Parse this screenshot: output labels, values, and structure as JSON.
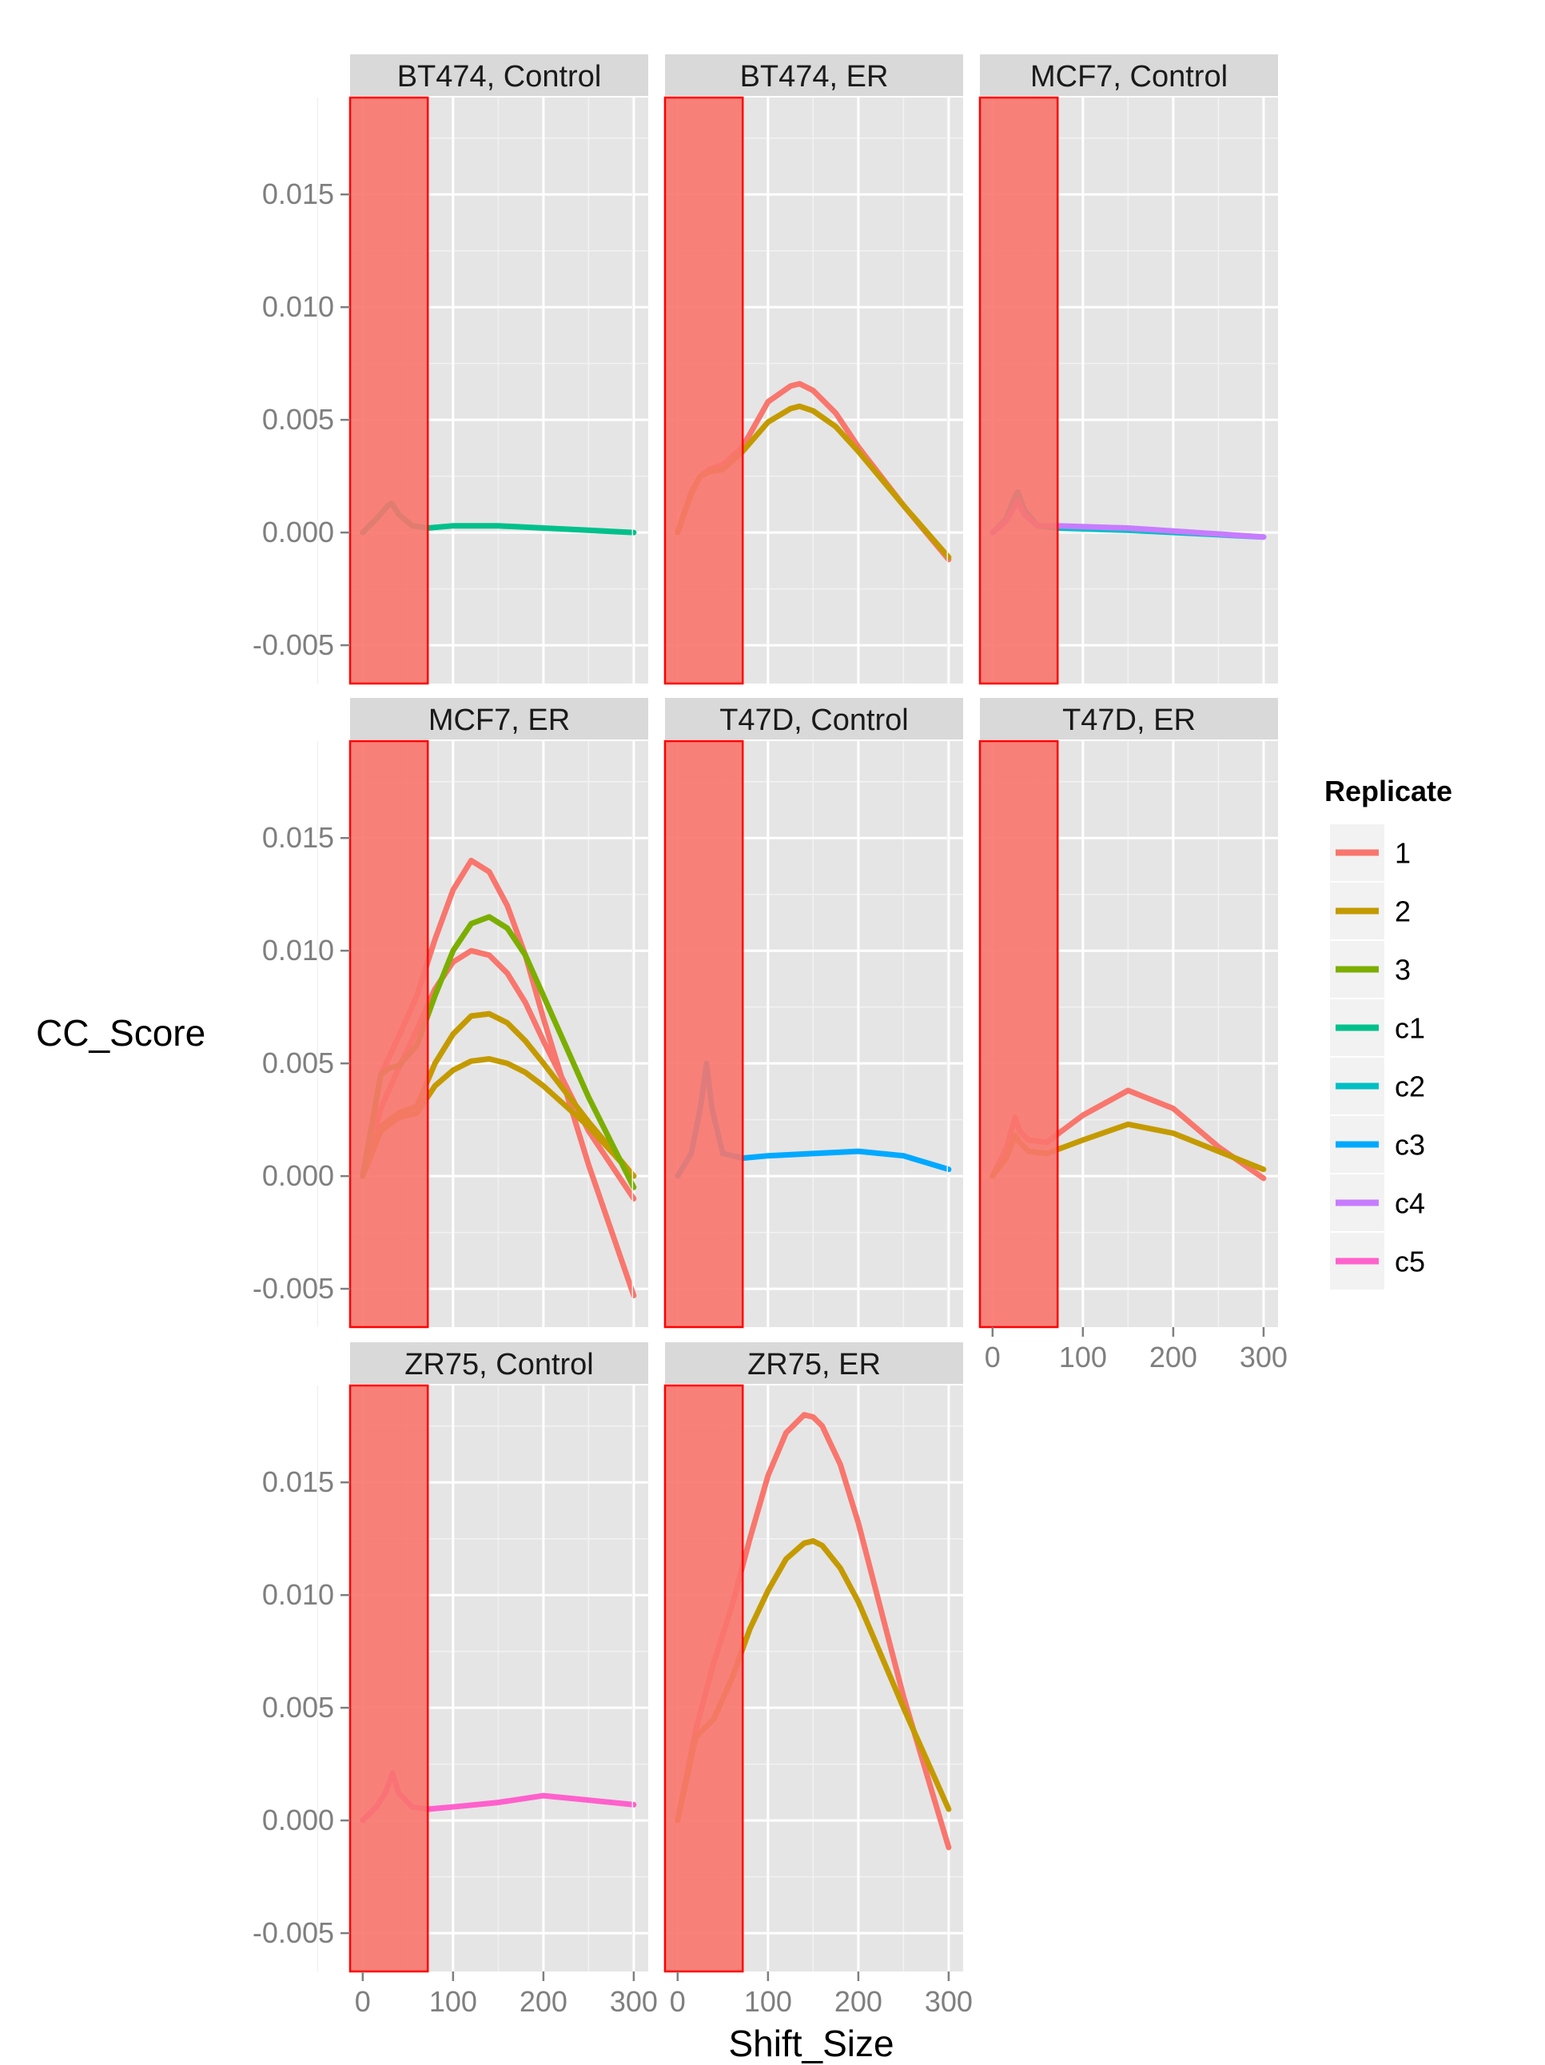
{
  "chart_data": {
    "type": "line",
    "xlabel": "Shift_Size",
    "ylabel": "CC_Score",
    "xlim": [
      -14,
      316
    ],
    "ylim": [
      -0.0067,
      0.0193
    ],
    "x_ticks": [
      0,
      100,
      200,
      300
    ],
    "y_ticks": [
      -0.005,
      0,
      0.005,
      0.01,
      0.015
    ],
    "y_tick_labels": [
      "-0.005",
      "0.000",
      "0.005",
      "0.010",
      "0.015"
    ],
    "grid": true,
    "highlight_region": {
      "x_from": -14,
      "x_to": 72,
      "color": "#f8766d"
    },
    "legend": {
      "title": "Replicate",
      "position": "right",
      "entries": [
        {
          "label": "1",
          "color": "#f8766d"
        },
        {
          "label": "2",
          "color": "#c49a00"
        },
        {
          "label": "3",
          "color": "#7cae00"
        },
        {
          "label": "c1",
          "color": "#00c08b"
        },
        {
          "label": "c2",
          "color": "#00bfc4"
        },
        {
          "label": "c3",
          "color": "#00a9ff"
        },
        {
          "label": "c4",
          "color": "#c77cff"
        },
        {
          "label": "c5",
          "color": "#ff61cc"
        }
      ]
    },
    "panels": [
      {
        "title": "BT474, Control",
        "series": [
          {
            "replicate": "c1",
            "color": "#00c08b",
            "x": [
              0,
              15,
              28,
              32,
              40,
              55,
              72,
              100,
              150,
              200,
              250,
              300
            ],
            "y": [
              0,
              0.0006,
              0.0012,
              0.0013,
              0.0008,
              0.0003,
              0.0002,
              0.0003,
              0.0003,
              0.0002,
              0.0001,
              0.0
            ]
          }
        ]
      },
      {
        "title": "BT474, ER",
        "series": [
          {
            "replicate": "1",
            "color": "#f8766d",
            "x": [
              0,
              15,
              25,
              35,
              50,
              72,
              100,
              125,
              135,
              150,
              175,
              200,
              250,
              300
            ],
            "y": [
              0,
              0.0018,
              0.0025,
              0.0028,
              0.003,
              0.0038,
              0.0058,
              0.0065,
              0.0066,
              0.0063,
              0.0053,
              0.0038,
              0.0012,
              -0.0012
            ]
          },
          {
            "replicate": "2",
            "color": "#c49a00",
            "x": [
              0,
              15,
              25,
              35,
              50,
              72,
              100,
              125,
              135,
              150,
              175,
              200,
              250,
              300
            ],
            "y": [
              0,
              0.0017,
              0.0025,
              0.0027,
              0.0028,
              0.0036,
              0.0049,
              0.0055,
              0.0056,
              0.0054,
              0.0047,
              0.0036,
              0.0012,
              -0.0011
            ]
          }
        ]
      },
      {
        "title": "MCF7, Control",
        "series": [
          {
            "replicate": "c2",
            "color": "#00bfc4",
            "x": [
              0,
              15,
              25,
              28,
              35,
              50,
              72,
              150,
              300
            ],
            "y": [
              0,
              0.0006,
              0.0016,
              0.0018,
              0.001,
              0.0003,
              0.0002,
              0.0001,
              -0.0002
            ]
          },
          {
            "replicate": "c4",
            "color": "#c77cff",
            "x": [
              0,
              15,
              25,
              28,
              35,
              50,
              72,
              150,
              300
            ],
            "y": [
              0,
              0.0005,
              0.0012,
              0.0014,
              0.0008,
              0.0003,
              0.0003,
              0.0002,
              -0.0002
            ]
          }
        ]
      },
      {
        "title": "MCF7, ER",
        "series": [
          {
            "replicate": "1",
            "color": "#f8766d",
            "x": [
              0,
              20,
              40,
              60,
              80,
              100,
              120,
              140,
              160,
              180,
              200,
              250,
              300
            ],
            "y": [
              0,
              0.0045,
              0.0062,
              0.008,
              0.0105,
              0.0127,
              0.014,
              0.0135,
              0.012,
              0.0098,
              0.007,
              0.0005,
              -0.0053
            ]
          },
          {
            "replicate": "1",
            "color": "#f8766d",
            "x": [
              0,
              20,
              40,
              60,
              80,
              100,
              120,
              140,
              160,
              180,
              200,
              250,
              300
            ],
            "y": [
              0,
              0.003,
              0.0048,
              0.0065,
              0.0083,
              0.0095,
              0.01,
              0.0098,
              0.009,
              0.0077,
              0.006,
              0.002,
              -0.001
            ]
          },
          {
            "replicate": "2",
            "color": "#c49a00",
            "x": [
              0,
              20,
              40,
              60,
              80,
              100,
              120,
              140,
              160,
              180,
              200,
              250,
              300
            ],
            "y": [
              0,
              0.0022,
              0.0028,
              0.0031,
              0.005,
              0.0063,
              0.0071,
              0.0072,
              0.0068,
              0.006,
              0.005,
              0.0024,
              0.0
            ]
          },
          {
            "replicate": "2",
            "color": "#c49a00",
            "x": [
              0,
              20,
              40,
              60,
              80,
              100,
              120,
              140,
              160,
              180,
              200,
              250,
              300
            ],
            "y": [
              0,
              0.002,
              0.0026,
              0.0028,
              0.004,
              0.0047,
              0.0051,
              0.0052,
              0.005,
              0.0046,
              0.004,
              0.0022,
              0.0
            ]
          },
          {
            "replicate": "3",
            "color": "#7cae00",
            "x": [
              0,
              20,
              30,
              40,
              60,
              80,
              100,
              120,
              140,
              160,
              180,
              200,
              250,
              300
            ],
            "y": [
              0,
              0.0045,
              0.0048,
              0.0049,
              0.0058,
              0.008,
              0.01,
              0.0112,
              0.0115,
              0.011,
              0.0098,
              0.008,
              0.0035,
              -0.0005
            ]
          }
        ]
      },
      {
        "title": "T47D, Control",
        "series": [
          {
            "replicate": "c3",
            "color": "#00a9ff",
            "x": [
              0,
              15,
              25,
              32,
              38,
              50,
              72,
              100,
              150,
              200,
              250,
              300
            ],
            "y": [
              0,
              0.001,
              0.003,
              0.005,
              0.003,
              0.001,
              0.0008,
              0.0009,
              0.001,
              0.0011,
              0.0009,
              0.0003
            ]
          }
        ]
      },
      {
        "title": "T47D, ER",
        "series": [
          {
            "replicate": "1",
            "color": "#f8766d",
            "x": [
              0,
              15,
              25,
              30,
              40,
              60,
              100,
              150,
              200,
              250,
              300
            ],
            "y": [
              0,
              0.0012,
              0.0026,
              0.002,
              0.0016,
              0.0015,
              0.0027,
              0.0038,
              0.003,
              0.0013,
              -0.0001
            ]
          },
          {
            "replicate": "2",
            "color": "#c49a00",
            "x": [
              0,
              15,
              25,
              30,
              40,
              60,
              100,
              150,
              200,
              250,
              300
            ],
            "y": [
              0,
              0.0008,
              0.0018,
              0.0015,
              0.0011,
              0.001,
              0.0016,
              0.0023,
              0.0019,
              0.0011,
              0.0003
            ]
          }
        ]
      },
      {
        "title": "ZR75, Control",
        "series": [
          {
            "replicate": "c5",
            "color": "#ff61cc",
            "x": [
              0,
              15,
              25,
              33,
              40,
              55,
              72,
              100,
              150,
              200,
              250,
              300
            ],
            "y": [
              0,
              0.0006,
              0.0012,
              0.0021,
              0.0012,
              0.0006,
              0.0005,
              0.0006,
              0.0008,
              0.0011,
              0.0009,
              0.0007
            ]
          }
        ]
      },
      {
        "title": "ZR75, ER",
        "series": [
          {
            "replicate": "1",
            "color": "#f8766d",
            "x": [
              0,
              20,
              40,
              60,
              80,
              100,
              120,
              140,
              150,
              160,
              180,
              200,
              250,
              300
            ],
            "y": [
              0,
              0.004,
              0.007,
              0.0095,
              0.0125,
              0.0153,
              0.0172,
              0.018,
              0.0179,
              0.0175,
              0.0158,
              0.0132,
              0.0055,
              -0.0012
            ]
          },
          {
            "replicate": "2",
            "color": "#c49a00",
            "x": [
              0,
              20,
              40,
              60,
              80,
              100,
              120,
              140,
              150,
              160,
              180,
              200,
              250,
              300
            ],
            "y": [
              0,
              0.0037,
              0.0045,
              0.0063,
              0.0085,
              0.0102,
              0.0116,
              0.0123,
              0.0124,
              0.0122,
              0.0112,
              0.0097,
              0.005,
              0.0005
            ]
          }
        ]
      }
    ]
  }
}
